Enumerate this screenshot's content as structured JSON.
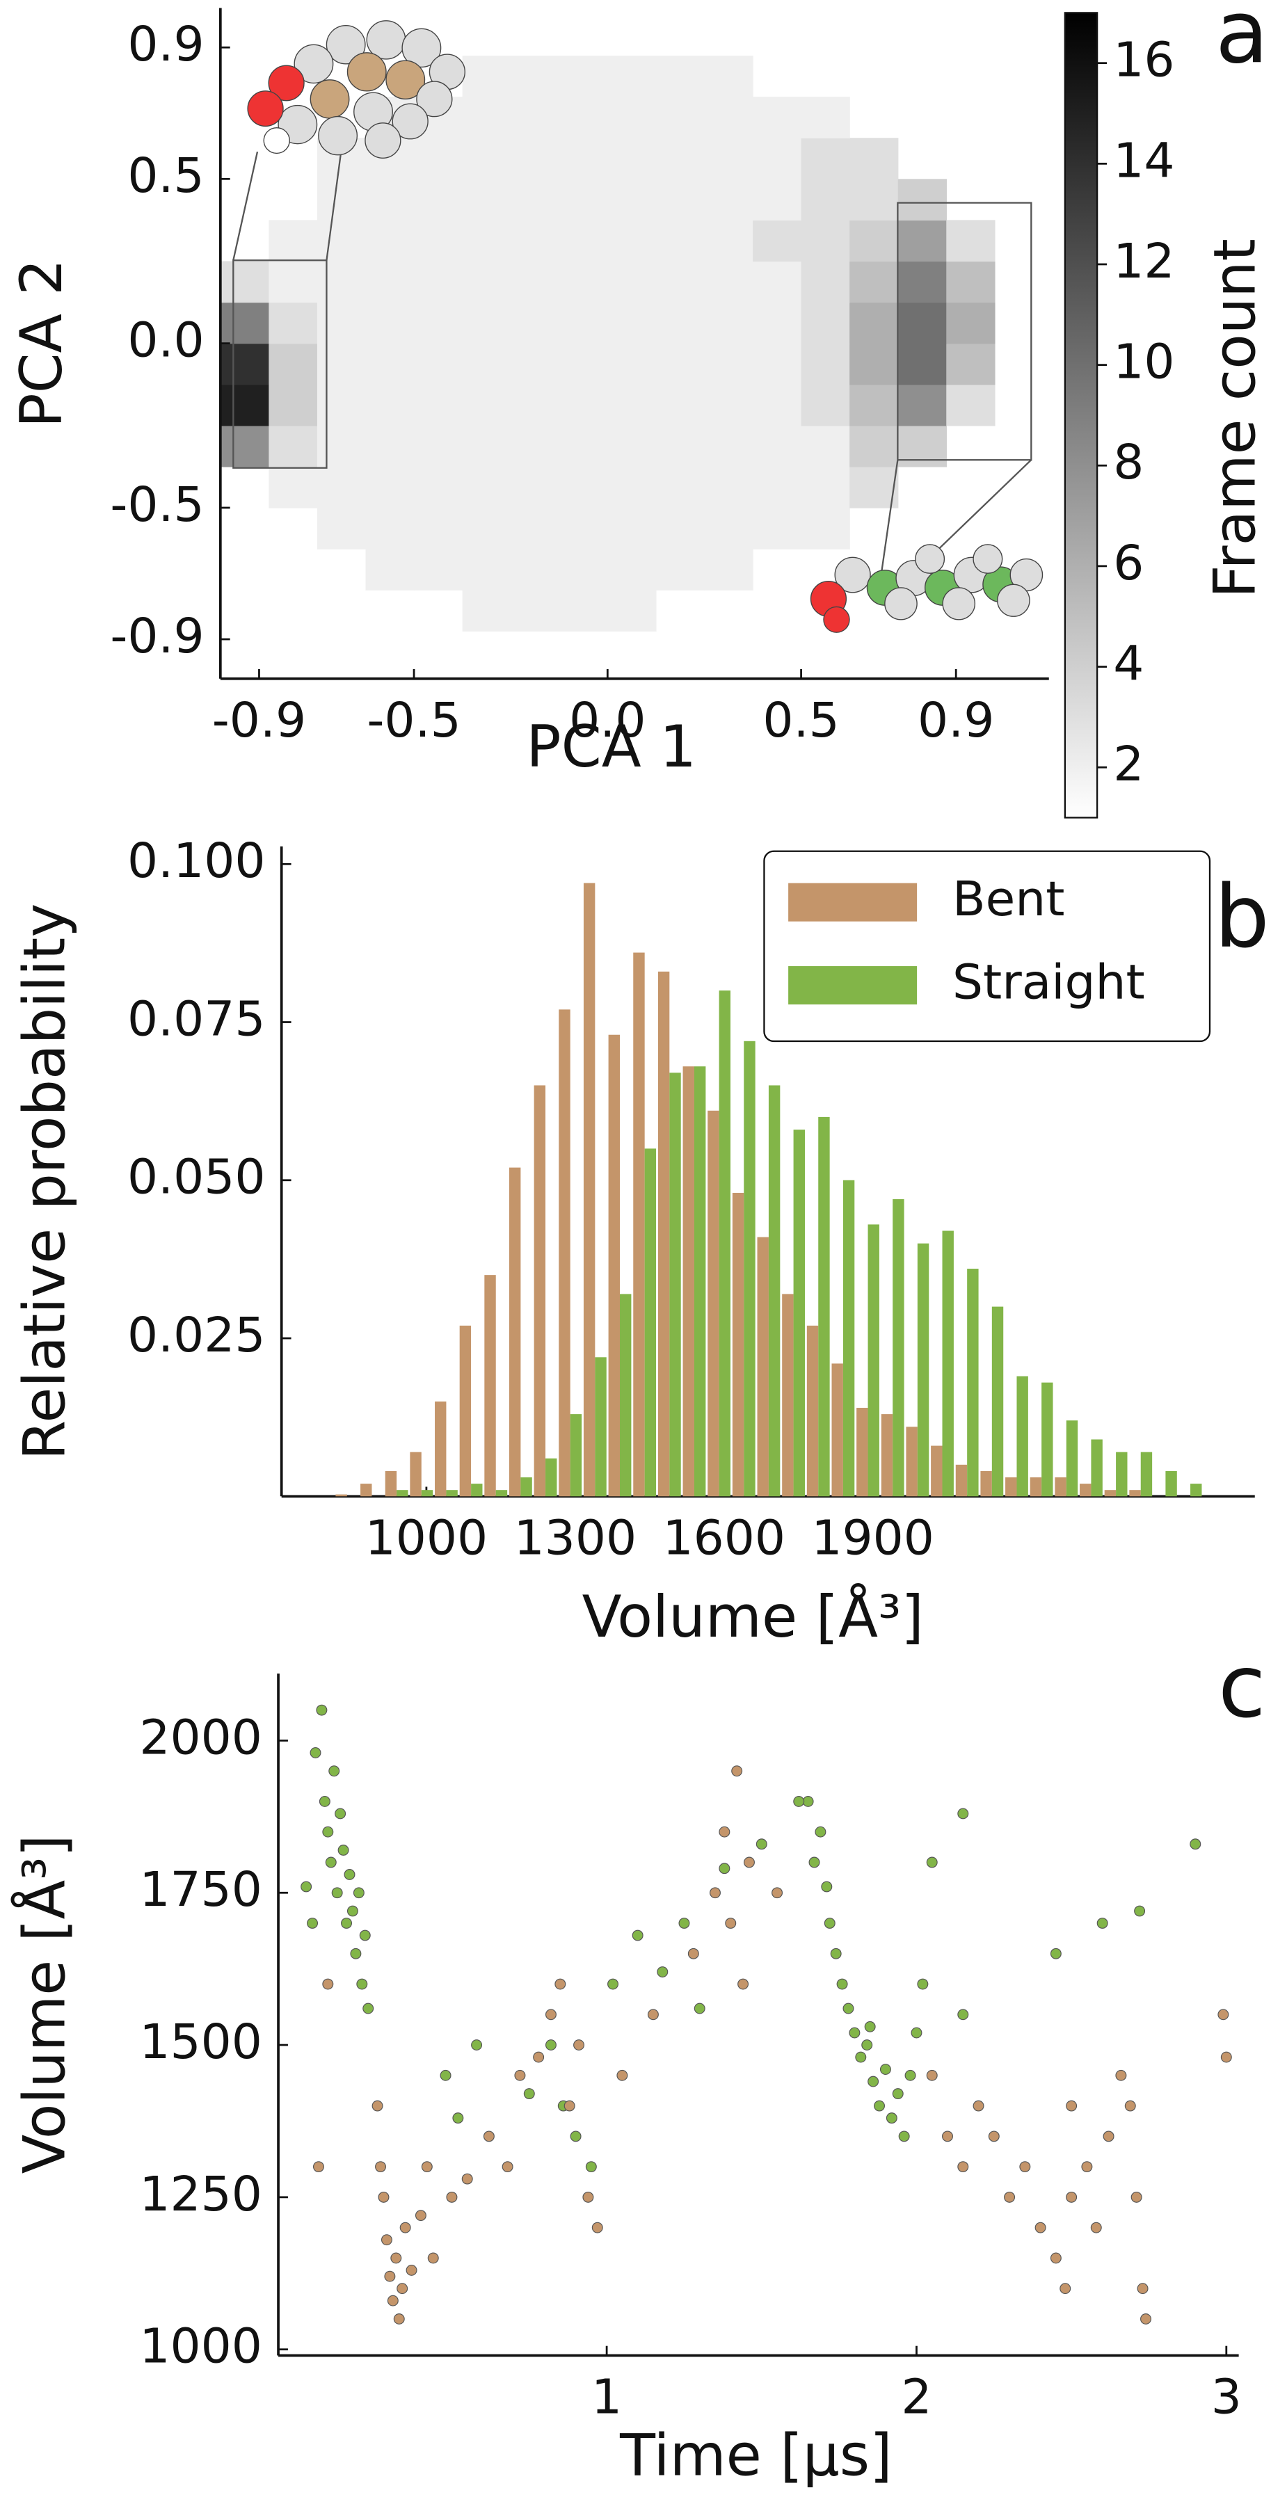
{
  "chart_data": [
    {
      "type": "heatmap",
      "panel_label": "a",
      "xlabel": "PCA 1",
      "ylabel": "PCA 2",
      "colorbar_label": "Frame count",
      "colormap": "Greys",
      "xbins": [
        -1,
        -0.875,
        -0.75,
        -0.625,
        -0.5,
        -0.375,
        -0.25,
        -0.125,
        0,
        0.125,
        0.25,
        0.375,
        0.5,
        0.625,
        0.75,
        0.875,
        1
      ],
      "ybins": [
        -1,
        -0.875,
        -0.75,
        -0.625,
        -0.5,
        -0.375,
        -0.25,
        -0.125,
        0,
        0.125,
        0.25,
        0.375,
        0.5,
        0.625,
        0.75,
        0.875,
        1
      ],
      "z": [
        [
          0,
          0,
          0,
          0,
          0,
          0,
          0,
          0,
          0,
          0,
          0,
          0,
          0,
          0,
          0,
          0
        ],
        [
          0,
          0,
          0,
          0,
          0,
          2,
          2,
          2,
          2,
          0,
          0,
          0,
          0,
          0,
          0,
          0
        ],
        [
          0,
          0,
          0,
          2,
          2,
          2,
          2,
          2,
          2,
          2,
          2,
          0,
          0,
          0,
          0,
          0
        ],
        [
          0,
          0,
          2,
          2,
          2,
          2,
          2,
          2,
          2,
          2,
          2,
          2,
          2,
          0,
          0,
          0
        ],
        [
          0,
          2,
          2,
          2,
          2,
          2,
          2,
          2,
          2,
          2,
          2,
          2,
          2,
          3,
          0,
          0
        ],
        [
          8,
          3,
          2,
          2,
          2,
          2,
          2,
          2,
          2,
          2,
          2,
          2,
          2,
          4,
          4,
          0
        ],
        [
          15,
          4,
          2,
          2,
          2,
          2,
          2,
          2,
          2,
          2,
          2,
          2,
          3,
          5,
          8,
          3
        ],
        [
          14,
          4,
          2,
          2,
          2,
          2,
          2,
          2,
          2,
          2,
          2,
          2,
          3,
          6,
          10,
          5
        ],
        [
          9,
          3,
          2,
          2,
          2,
          2,
          2,
          2,
          2,
          2,
          2,
          2,
          3,
          6,
          10,
          6
        ],
        [
          3,
          2,
          2,
          2,
          2,
          2,
          2,
          2,
          2,
          2,
          2,
          2,
          3,
          5,
          9,
          5
        ],
        [
          0,
          2,
          2,
          2,
          2,
          2,
          2,
          2,
          2,
          2,
          2,
          3,
          3,
          4,
          7,
          3
        ],
        [
          0,
          0,
          2,
          2,
          2,
          2,
          2,
          2,
          2,
          2,
          2,
          2,
          3,
          3,
          4,
          0
        ],
        [
          0,
          0,
          2,
          2,
          2,
          2,
          2,
          2,
          2,
          2,
          2,
          2,
          3,
          3,
          0,
          0
        ],
        [
          0,
          0,
          0,
          2,
          2,
          2,
          2,
          2,
          2,
          2,
          2,
          2,
          2,
          0,
          0,
          0
        ],
        [
          0,
          0,
          0,
          0,
          0,
          2,
          2,
          2,
          2,
          2,
          2,
          0,
          0,
          0,
          0,
          0
        ],
        [
          0,
          0,
          0,
          0,
          0,
          0,
          0,
          0,
          0,
          0,
          0,
          0,
          0,
          0,
          0,
          0
        ]
      ],
      "xlim": [
        -1.0,
        1.14
      ],
      "ylim": [
        -1.02,
        1.02
      ],
      "xticks": [
        -0.9,
        -0.5,
        {
          "value": 0,
          "label": "0.0"
        },
        0.5,
        0.9
      ],
      "yticks": [
        0.9,
        0.5,
        {
          "value": 0,
          "label": "0.0"
        },
        -0.5,
        -0.9
      ],
      "clim": [
        1,
        17
      ],
      "cticks": [
        2,
        4,
        6,
        8,
        10,
        12,
        14,
        16
      ]
    },
    {
      "type": "bar",
      "panel_label": "b",
      "xlabel": "Volume [Å³]",
      "ylabel": "Relative probability",
      "legend": "upper right",
      "x": [
        840,
        890,
        940,
        990,
        1040,
        1090,
        1140,
        1190,
        1240,
        1290,
        1340,
        1390,
        1440,
        1490,
        1540,
        1590,
        1640,
        1690,
        1740,
        1790,
        1840,
        1890,
        1940,
        1990,
        2040,
        2090,
        2140,
        2190,
        2240,
        2290,
        2340,
        2390,
        2440,
        2490,
        2540
      ],
      "series": [
        {
          "name": "Bent",
          "color": "#c4956a",
          "values": [
            0.0003,
            0.002,
            0.004,
            0.007,
            0.015,
            0.027,
            0.035,
            0.052,
            0.065,
            0.077,
            0.097,
            0.073,
            0.086,
            0.083,
            0.068,
            0.061,
            0.048,
            0.041,
            0.032,
            0.027,
            0.021,
            0.014,
            0.013,
            0.011,
            0.008,
            0.005,
            0.004,
            0.003,
            0.003,
            0.003,
            0.002,
            0.001,
            0.001,
            null,
            null
          ]
        },
        {
          "name": "Straight",
          "color": "#82b548",
          "values": [
            null,
            null,
            0.001,
            0.001,
            0.001,
            0.002,
            0.001,
            0.003,
            0.006,
            0.013,
            0.022,
            0.032,
            0.055,
            0.067,
            0.068,
            0.08,
            0.072,
            0.065,
            0.058,
            0.06,
            0.05,
            0.043,
            0.047,
            0.04,
            0.042,
            0.036,
            0.03,
            0.019,
            0.018,
            0.012,
            0.009,
            0.007,
            0.007,
            0.004,
            0.002
          ]
        }
      ],
      "xlim": [
        708,
        2670
      ],
      "ylim": [
        0,
        0.1028
      ],
      "xticks": [
        1000,
        1300,
        1600,
        1900
      ],
      "yticks": [
        0.025,
        {
          "value": 0.05,
          "label": "0.050"
        },
        0.075,
        {
          "value": 0.1,
          "label": "0.100"
        }
      ]
    },
    {
      "type": "scatter",
      "panel_label": "c",
      "xlabel": "Time [µs]",
      "ylabel": "Volume [Å³]",
      "series": [
        {
          "name": "Straight",
          "color": "#82b548",
          "x": [
            0.06,
            0.08,
            0.09,
            0.1,
            0.11,
            0.12,
            0.13,
            0.14,
            0.15,
            0.16,
            0.17,
            0.18,
            0.19,
            0.2,
            0.21,
            0.22,
            0.23,
            0.03,
            0.05,
            0.48,
            0.52,
            0.58,
            0.75,
            0.82,
            0.86,
            0.9,
            0.95,
            1.02,
            1.1,
            1.18,
            1.25,
            1.3,
            1.38,
            1.65,
            1.67,
            1.69,
            1.71,
            1.72,
            1.74,
            1.76,
            1.78,
            1.8,
            1.82,
            1.84,
            1.86,
            1.88,
            1.9,
            1.92,
            1.94,
            1.96,
            1.98,
            2.0,
            2.02,
            2.05,
            2.15,
            2.15,
            2.45,
            2.6,
            2.72,
            2.9,
            1.5,
            1.62,
            1.85
          ],
          "values": [
            1980,
            2050,
            1900,
            1850,
            1800,
            1950,
            1750,
            1880,
            1820,
            1700,
            1780,
            1720,
            1650,
            1750,
            1600,
            1680,
            1560,
            1760,
            1700,
            1450,
            1380,
            1500,
            1420,
            1500,
            1400,
            1350,
            1300,
            1600,
            1680,
            1620,
            1700,
            1560,
            1790,
            1900,
            1800,
            1850,
            1760,
            1700,
            1650,
            1600,
            1560,
            1520,
            1480,
            1500,
            1440,
            1400,
            1460,
            1380,
            1420,
            1350,
            1450,
            1520,
            1600,
            1800,
            1880,
            1550,
            1650,
            1700,
            1720,
            1830,
            1830,
            1900,
            1530
          ]
        },
        {
          "name": "Bent",
          "color": "#c4956a",
          "x": [
            0.26,
            0.27,
            0.28,
            0.29,
            0.3,
            0.31,
            0.32,
            0.33,
            0.34,
            0.35,
            0.37,
            0.4,
            0.42,
            0.44,
            0.5,
            0.55,
            0.62,
            0.68,
            0.72,
            0.78,
            0.82,
            0.85,
            0.88,
            0.91,
            0.94,
            0.97,
            1.05,
            1.15,
            1.28,
            1.35,
            1.38,
            1.4,
            1.42,
            1.44,
            1.46,
            2.05,
            2.1,
            2.15,
            2.2,
            2.25,
            2.3,
            2.35,
            2.4,
            2.45,
            2.48,
            2.5,
            2.55,
            2.58,
            2.62,
            2.66,
            2.69,
            2.71,
            2.73,
            2.74,
            2.99,
            3.0,
            0.07,
            0.1,
            1.55,
            2.5
          ],
          "values": [
            1400,
            1300,
            1250,
            1180,
            1120,
            1080,
            1150,
            1050,
            1100,
            1200,
            1130,
            1220,
            1300,
            1150,
            1250,
            1280,
            1350,
            1300,
            1450,
            1480,
            1550,
            1600,
            1400,
            1500,
            1250,
            1200,
            1450,
            1550,
            1650,
            1750,
            1850,
            1700,
            1950,
            1600,
            1800,
            1450,
            1350,
            1300,
            1400,
            1350,
            1250,
            1300,
            1200,
            1150,
            1100,
            1250,
            1300,
            1200,
            1350,
            1450,
            1400,
            1250,
            1100,
            1050,
            1550,
            1480,
            1300,
            1600,
            1750,
            1400
          ]
        }
      ],
      "xlim": [
        -0.06,
        3.04
      ],
      "ylim": [
        990,
        2110
      ],
      "xticks": [
        1,
        2,
        3
      ],
      "yticks": [
        1000,
        1250,
        1500,
        1750,
        2000
      ]
    }
  ]
}
